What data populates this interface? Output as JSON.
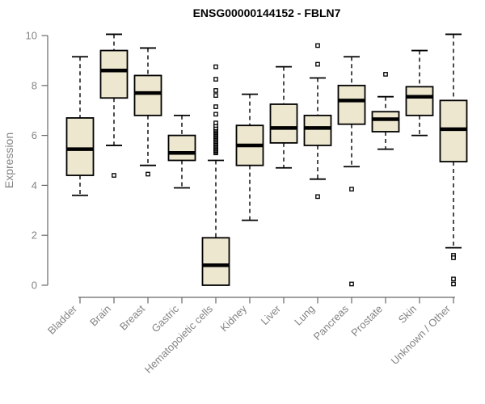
{
  "chart_data": {
    "type": "boxplot",
    "title": "ENSG00000144152 - FBLN7",
    "ylabel": "Expression",
    "xlabel": "",
    "ylim": [
      0,
      10
    ],
    "yticks": [
      0,
      2,
      4,
      6,
      8,
      10
    ],
    "grid": false,
    "legend": false,
    "colors": {
      "box_fill": "#EDE7CF",
      "box_border": "#000000",
      "median": "#000000",
      "whisker": "#000000",
      "outlier_fill": "#FFFFFF",
      "axis": "#696969",
      "tick_label": "#848484",
      "title": "#000000",
      "background": "#FFFFFF"
    },
    "categories": [
      "Bladder",
      "Brain",
      "Breast",
      "Gastric",
      "Hematopoietic cells",
      "Kidney",
      "Liver",
      "Lung",
      "Pancreas",
      "Prostate",
      "Skin",
      "Unknown / Other"
    ],
    "boxes": [
      {
        "category": "Bladder",
        "whisker_low": 3.6,
        "q1": 4.4,
        "median": 5.45,
        "q3": 6.7,
        "whisker_high": 9.15,
        "outliers": []
      },
      {
        "category": "Brain",
        "whisker_low": 5.6,
        "q1": 7.5,
        "median": 8.6,
        "q3": 9.4,
        "whisker_high": 10.05,
        "outliers": [
          4.4
        ]
      },
      {
        "category": "Breast",
        "whisker_low": 4.8,
        "q1": 6.8,
        "median": 7.7,
        "q3": 8.4,
        "whisker_high": 9.5,
        "outliers": [
          4.45
        ]
      },
      {
        "category": "Gastric",
        "whisker_low": 3.9,
        "q1": 5.0,
        "median": 5.3,
        "q3": 6.0,
        "whisker_high": 6.8,
        "outliers": []
      },
      {
        "category": "Hematopoietic cells",
        "whisker_low": 0.0,
        "q1": 0.0,
        "median": 0.8,
        "q3": 1.9,
        "whisker_high": 5.0,
        "outliers": [
          5.3,
          5.35,
          5.4,
          5.45,
          5.5,
          5.55,
          5.6,
          5.65,
          5.7,
          5.75,
          5.8,
          5.85,
          5.9,
          5.95,
          6.0,
          6.05,
          6.1,
          6.15,
          6.2,
          6.25,
          6.3,
          6.4,
          6.5,
          6.85,
          7.15,
          7.6,
          7.8,
          8.25,
          8.75
        ]
      },
      {
        "category": "Kidney",
        "whisker_low": 2.6,
        "q1": 4.8,
        "median": 5.6,
        "q3": 6.4,
        "whisker_high": 7.65,
        "outliers": []
      },
      {
        "category": "Liver",
        "whisker_low": 4.7,
        "q1": 5.7,
        "median": 6.3,
        "q3": 7.25,
        "whisker_high": 8.75,
        "outliers": []
      },
      {
        "category": "Lung",
        "whisker_low": 4.25,
        "q1": 5.6,
        "median": 6.3,
        "q3": 6.8,
        "whisker_high": 8.3,
        "outliers": [
          9.6,
          8.85,
          3.55
        ]
      },
      {
        "category": "Pancreas",
        "whisker_low": 4.75,
        "q1": 6.45,
        "median": 7.4,
        "q3": 8.0,
        "whisker_high": 9.15,
        "outliers": [
          3.85,
          0.05
        ]
      },
      {
        "category": "Prostate",
        "whisker_low": 5.45,
        "q1": 6.15,
        "median": 6.65,
        "q3": 6.95,
        "whisker_high": 7.55,
        "outliers": [
          8.45
        ]
      },
      {
        "category": "Skin",
        "whisker_low": 6.0,
        "q1": 6.8,
        "median": 7.55,
        "q3": 7.95,
        "whisker_high": 9.4,
        "outliers": []
      },
      {
        "category": "Unknown / Other",
        "whisker_low": 1.5,
        "q1": 4.95,
        "median": 6.25,
        "q3": 7.4,
        "whisker_high": 10.05,
        "outliers": [
          1.2,
          1.1,
          0.25,
          0.05
        ]
      }
    ]
  }
}
